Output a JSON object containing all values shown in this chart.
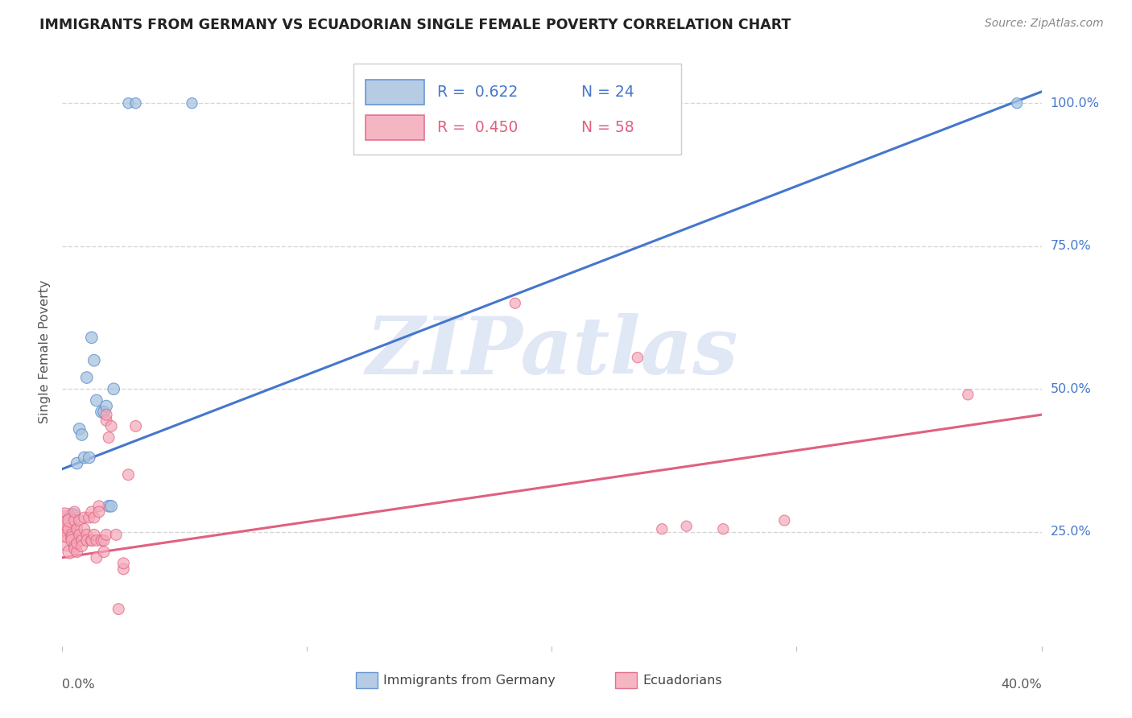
{
  "title": "IMMIGRANTS FROM GERMANY VS ECUADORIAN SINGLE FEMALE POVERTY CORRELATION CHART",
  "source": "Source: ZipAtlas.com",
  "ylabel": "Single Female Poverty",
  "y_ticks_labels": [
    "100.0%",
    "75.0%",
    "50.0%",
    "25.0%"
  ],
  "y_tick_vals": [
    1.0,
    0.75,
    0.5,
    0.25
  ],
  "background_color": "#ffffff",
  "grid_color": "#cccccc",
  "watermark_text": "ZIPatlas",
  "legend_R1": "0.622",
  "legend_N1": "24",
  "legend_R2": "0.450",
  "legend_N2": "58",
  "blue_fill": "#a8c4e0",
  "pink_fill": "#f4a8b8",
  "blue_edge": "#5588cc",
  "pink_edge": "#e06080",
  "line_blue": "#4477cc",
  "line_pink": "#e06080",
  "xlim": [
    0.0,
    0.4
  ],
  "ylim": [
    0.05,
    1.08
  ],
  "blue_line_x": [
    0.0,
    0.4
  ],
  "blue_line_y": [
    0.36,
    1.02
  ],
  "pink_line_x": [
    0.0,
    0.4
  ],
  "pink_line_y": [
    0.205,
    0.455
  ],
  "blue_scatter": [
    [
      0.001,
      0.265
    ],
    [
      0.002,
      0.255
    ],
    [
      0.003,
      0.265
    ],
    [
      0.004,
      0.28
    ],
    [
      0.005,
      0.28
    ],
    [
      0.006,
      0.37
    ],
    [
      0.007,
      0.43
    ],
    [
      0.008,
      0.42
    ],
    [
      0.009,
      0.38
    ],
    [
      0.01,
      0.52
    ],
    [
      0.011,
      0.38
    ],
    [
      0.012,
      0.59
    ],
    [
      0.013,
      0.55
    ],
    [
      0.014,
      0.48
    ],
    [
      0.016,
      0.46
    ],
    [
      0.017,
      0.46
    ],
    [
      0.018,
      0.47
    ],
    [
      0.019,
      0.295
    ],
    [
      0.02,
      0.295
    ],
    [
      0.021,
      0.5
    ],
    [
      0.027,
      1.0
    ],
    [
      0.03,
      1.0
    ],
    [
      0.053,
      1.0
    ],
    [
      0.39,
      1.0
    ]
  ],
  "blue_sizes": [
    350,
    200,
    150,
    130,
    110,
    110,
    110,
    110,
    110,
    110,
    110,
    110,
    110,
    110,
    110,
    110,
    110,
    110,
    110,
    110,
    90,
    90,
    90,
    90
  ],
  "pink_scatter": [
    [
      0.001,
      0.255
    ],
    [
      0.001,
      0.265
    ],
    [
      0.001,
      0.27
    ],
    [
      0.002,
      0.23
    ],
    [
      0.002,
      0.245
    ],
    [
      0.002,
      0.265
    ],
    [
      0.003,
      0.215
    ],
    [
      0.003,
      0.255
    ],
    [
      0.003,
      0.27
    ],
    [
      0.004,
      0.245
    ],
    [
      0.004,
      0.24
    ],
    [
      0.004,
      0.235
    ],
    [
      0.005,
      0.225
    ],
    [
      0.005,
      0.22
    ],
    [
      0.005,
      0.27
    ],
    [
      0.005,
      0.285
    ],
    [
      0.006,
      0.255
    ],
    [
      0.006,
      0.215
    ],
    [
      0.006,
      0.23
    ],
    [
      0.007,
      0.27
    ],
    [
      0.007,
      0.245
    ],
    [
      0.008,
      0.235
    ],
    [
      0.008,
      0.225
    ],
    [
      0.009,
      0.275
    ],
    [
      0.009,
      0.255
    ],
    [
      0.01,
      0.245
    ],
    [
      0.01,
      0.235
    ],
    [
      0.011,
      0.275
    ],
    [
      0.012,
      0.285
    ],
    [
      0.012,
      0.235
    ],
    [
      0.012,
      0.235
    ],
    [
      0.013,
      0.275
    ],
    [
      0.013,
      0.245
    ],
    [
      0.014,
      0.205
    ],
    [
      0.014,
      0.235
    ],
    [
      0.015,
      0.295
    ],
    [
      0.015,
      0.285
    ],
    [
      0.016,
      0.235
    ],
    [
      0.017,
      0.235
    ],
    [
      0.017,
      0.215
    ],
    [
      0.018,
      0.245
    ],
    [
      0.018,
      0.445
    ],
    [
      0.018,
      0.455
    ],
    [
      0.019,
      0.415
    ],
    [
      0.02,
      0.435
    ],
    [
      0.022,
      0.245
    ],
    [
      0.023,
      0.115
    ],
    [
      0.025,
      0.185
    ],
    [
      0.025,
      0.195
    ],
    [
      0.027,
      0.35
    ],
    [
      0.03,
      0.435
    ],
    [
      0.185,
      0.65
    ],
    [
      0.235,
      0.555
    ],
    [
      0.245,
      0.255
    ],
    [
      0.255,
      0.26
    ],
    [
      0.27,
      0.255
    ],
    [
      0.295,
      0.27
    ],
    [
      0.37,
      0.49
    ]
  ],
  "pink_sizes": [
    500,
    500,
    500,
    200,
    200,
    200,
    150,
    150,
    150,
    120,
    120,
    120,
    100,
    100,
    100,
    100,
    100,
    100,
    100,
    100,
    100,
    100,
    100,
    100,
    100,
    100,
    100,
    100,
    100,
    100,
    100,
    100,
    100,
    100,
    100,
    100,
    100,
    100,
    100,
    100,
    100,
    100,
    100,
    100,
    100,
    100,
    100,
    100,
    100,
    100,
    100,
    90,
    90,
    90,
    90,
    90,
    90,
    90
  ]
}
